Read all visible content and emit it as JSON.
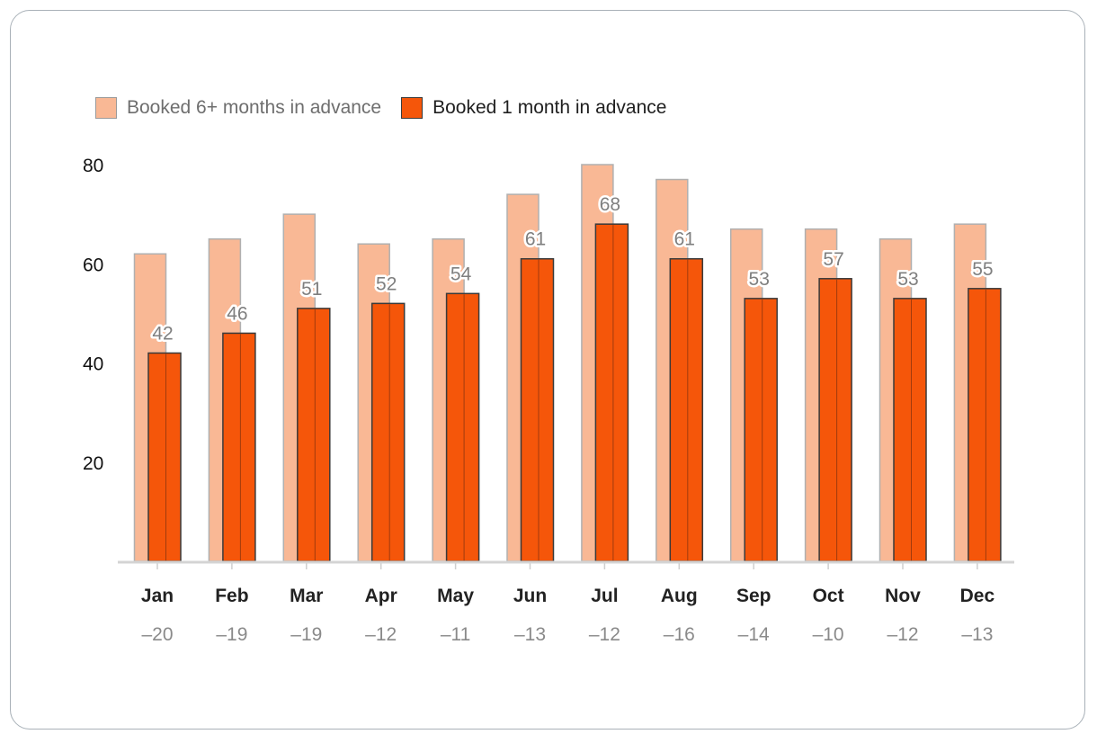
{
  "chart_data": {
    "type": "bar",
    "categories": [
      "Jan",
      "Feb",
      "Mar",
      "Apr",
      "May",
      "Jun",
      "Jul",
      "Aug",
      "Sep",
      "Oct",
      "Nov",
      "Dec"
    ],
    "series": [
      {
        "name": "Booked 6+ months in advance",
        "values": [
          62,
          65,
          70,
          64,
          65,
          74,
          80,
          77,
          67,
          67,
          65,
          68
        ],
        "color": "#f9b895"
      },
      {
        "name": "Booked 1 month in advance",
        "values": [
          42,
          46,
          51,
          52,
          54,
          61,
          68,
          61,
          53,
          57,
          53,
          55
        ],
        "color": "#f5560a"
      }
    ],
    "differences": [
      "–20",
      "–19",
      "–19",
      "–12",
      "–11",
      "–13",
      "–12",
      "–16",
      "–14",
      "–10",
      "–12",
      "–13"
    ],
    "yticks": [
      20,
      40,
      60,
      80
    ],
    "ylim": [
      0,
      80
    ],
    "grid": false,
    "legend_position": "top-left",
    "data_labels_series": "Booked 1 month in advance"
  }
}
